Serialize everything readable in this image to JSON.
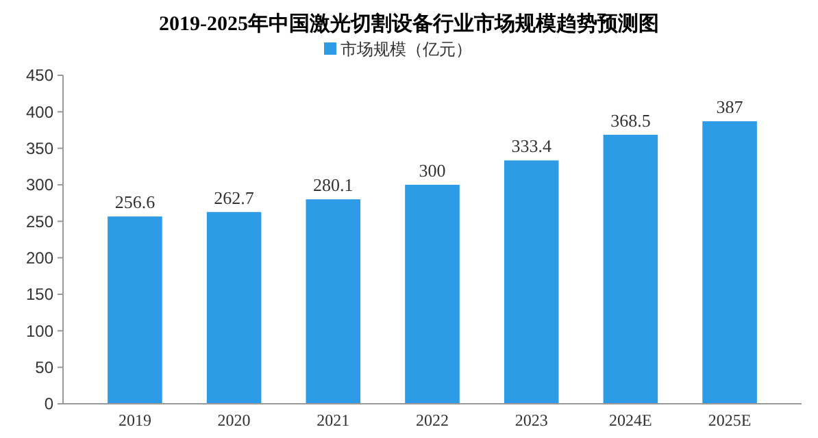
{
  "chart_data": {
    "type": "bar",
    "title": "2019-2025年中国激光切割设备行业市场规模趋势预测图",
    "categories": [
      "2019",
      "2020",
      "2021",
      "2022",
      "2023",
      "2024E",
      "2025E"
    ],
    "series": [
      {
        "name": "市场规模（亿元）",
        "color": "#2e9be6",
        "values": [
          256.6,
          262.7,
          280.1,
          300,
          333.4,
          368.5,
          387
        ]
      }
    ],
    "ylim": [
      0,
      450
    ],
    "yticks": [
      0,
      50,
      100,
      150,
      200,
      250,
      300,
      350,
      400,
      450
    ],
    "data_labels": true,
    "legend": "top",
    "grid": false
  }
}
